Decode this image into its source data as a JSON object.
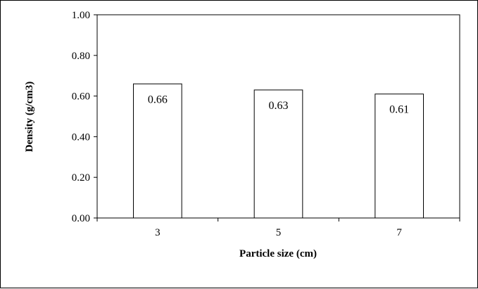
{
  "chart_data": {
    "type": "bar",
    "categories": [
      "3",
      "5",
      "7"
    ],
    "values": [
      0.66,
      0.63,
      0.61
    ],
    "data_labels": [
      "0.66",
      "0.63",
      "0.61"
    ],
    "title": "",
    "xlabel": "Particle size (cm)",
    "ylabel": "Density (g/cm3)",
    "ylim": [
      0,
      1.0
    ],
    "yticks": [
      "0.00",
      "0.20",
      "0.40",
      "0.60",
      "0.80",
      "1.00"
    ],
    "grid": false,
    "legend": "none",
    "bar_fill": "#ffffff",
    "bar_stroke": "#000000"
  }
}
